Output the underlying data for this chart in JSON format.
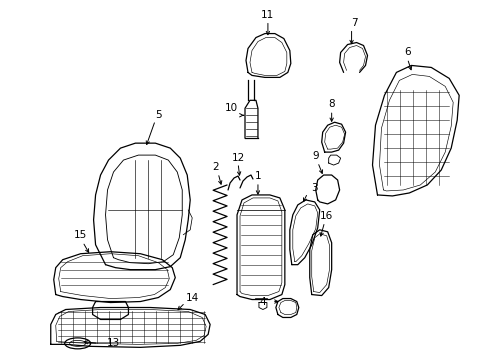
{
  "background_color": "#ffffff",
  "fig_width": 4.89,
  "fig_height": 3.6,
  "lc": "#000000",
  "lw": 0.9
}
